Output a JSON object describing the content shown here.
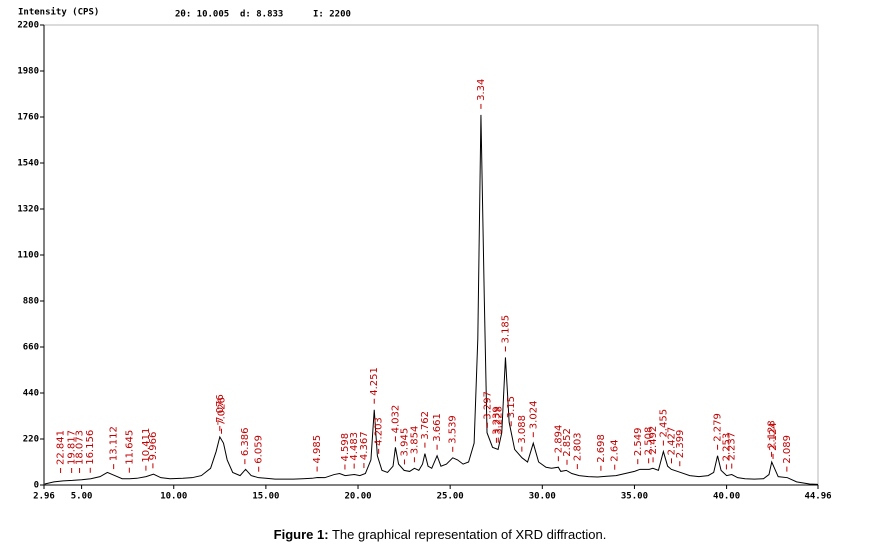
{
  "chart_data": {
    "type": "line",
    "y_label": "Intensity (CPS)",
    "readout": [
      "2θ: 10.005",
      "d: 8.833",
      "I: 2200"
    ],
    "color": "#000000",
    "peak_color": "#c00000",
    "xlim": [
      2.96,
      44.96
    ],
    "ylim": [
      0,
      2200
    ],
    "xticks": [
      2.96,
      {
        "value": 5,
        "label": "5.00"
      },
      {
        "value": 10,
        "label": "10.00"
      },
      {
        "value": 15,
        "label": "15.00"
      },
      {
        "value": 20,
        "label": "20.00"
      },
      {
        "value": 25,
        "label": "25.00"
      },
      {
        "value": 30,
        "label": "30.00"
      },
      {
        "value": 35,
        "label": "35.00"
      },
      {
        "value": 40,
        "label": "40.00"
      },
      44.96
    ],
    "yticks": [
      0,
      220,
      440,
      660,
      880,
      1100,
      1320,
      1540,
      1760,
      1980,
      2200
    ],
    "x": [
      3.0,
      3.5,
      4.0,
      4.5,
      5.0,
      5.5,
      6.0,
      6.4,
      6.8,
      7.2,
      7.6,
      8.0,
      8.5,
      8.9,
      9.3,
      9.8,
      10.5,
      11.0,
      11.5,
      12.0,
      12.3,
      12.5,
      12.7,
      12.9,
      13.2,
      13.6,
      13.9,
      14.2,
      14.6,
      15.0,
      15.5,
      16.0,
      16.5,
      17.0,
      17.5,
      17.8,
      18.2,
      18.7,
      19.0,
      19.3,
      19.8,
      20.1,
      20.4,
      20.7,
      20.88,
      21.05,
      21.3,
      21.6,
      21.9,
      22.03,
      22.2,
      22.5,
      22.8,
      23.06,
      23.3,
      23.5,
      23.63,
      23.8,
      24.0,
      24.29,
      24.5,
      24.8,
      25.14,
      25.4,
      25.7,
      26.0,
      26.3,
      26.5,
      26.67,
      26.85,
      27.0,
      27.3,
      27.6,
      27.8,
      28.0,
      28.2,
      28.5,
      28.9,
      29.2,
      29.51,
      29.8,
      30.2,
      30.5,
      30.87,
      31.0,
      31.3,
      31.6,
      32.0,
      32.5,
      33.0,
      33.5,
      34.0,
      34.5,
      35.0,
      35.3,
      35.8,
      36.0,
      36.3,
      36.57,
      36.8,
      37.0,
      37.5,
      38.0,
      38.5,
      39.0,
      39.3,
      39.51,
      39.7,
      40.0,
      40.28,
      40.6,
      41.0,
      41.5,
      42.0,
      42.3,
      42.45,
      42.6,
      42.8,
      43.3,
      43.8,
      44.5,
      44.96
    ],
    "values": [
      5,
      15,
      20,
      22,
      25,
      30,
      40,
      60,
      45,
      30,
      30,
      32,
      40,
      52,
      35,
      30,
      32,
      35,
      45,
      80,
      160,
      230,
      200,
      120,
      60,
      45,
      75,
      45,
      35,
      32,
      28,
      28,
      28,
      30,
      32,
      36,
      35,
      50,
      55,
      45,
      50,
      45,
      55,
      120,
      360,
      140,
      70,
      60,
      90,
      180,
      100,
      70,
      65,
      80,
      70,
      100,
      150,
      90,
      80,
      140,
      90,
      100,
      130,
      120,
      100,
      110,
      200,
      700,
      1770,
      900,
      250,
      180,
      170,
      250,
      610,
      300,
      170,
      130,
      110,
      200,
      110,
      85,
      80,
      85,
      65,
      70,
      55,
      45,
      40,
      38,
      42,
      45,
      55,
      65,
      75,
      75,
      80,
      70,
      160,
      90,
      75,
      60,
      45,
      40,
      45,
      60,
      140,
      70,
      45,
      50,
      35,
      30,
      28,
      30,
      50,
      110,
      80,
      40,
      35,
      15,
      5,
      3
    ],
    "peaks": {
      "x": [
        3.86,
        4.46,
        4.89,
        5.47,
        6.74,
        7.59,
        8.49,
        8.87,
        12.5,
        12.59,
        13.86,
        14.61,
        17.78,
        19.29,
        19.79,
        20.32,
        20.88,
        21.12,
        22.03,
        22.52,
        23.06,
        23.63,
        24.29,
        25.14,
        26.67,
        27.02,
        27.51,
        27.61,
        28.0,
        28.31,
        28.89,
        29.51,
        30.87,
        31.34,
        31.9,
        33.18,
        33.93,
        35.18,
        35.77,
        36.01,
        36.57,
        37.01,
        37.46,
        39.51,
        39.99,
        40.28,
        42.44,
        42.52,
        43.27
      ],
      "labels": [
        22.841,
        19.817,
        18.073,
        16.156,
        13.112,
        11.645,
        10.411,
        9.966,
        7.076,
        7.026,
        6.386,
        6.059,
        4.985,
        4.598,
        4.483,
        4.367,
        4.251,
        4.203,
        4.032,
        3.945,
        3.854,
        3.762,
        3.661,
        3.539,
        3.34,
        3.297,
        3.239,
        3.228,
        3.185,
        3.15,
        3.088,
        3.024,
        2.894,
        2.852,
        2.803,
        2.698,
        2.64,
        2.549,
        2.508,
        2.492,
        2.455,
        2.427,
        2.399,
        2.279,
        2.253,
        2.237,
        2.128,
        2.124,
        2.089
      ]
    }
  },
  "caption": {
    "label": "Figure 1:",
    "text": " The graphical representation of XRD diffraction."
  }
}
